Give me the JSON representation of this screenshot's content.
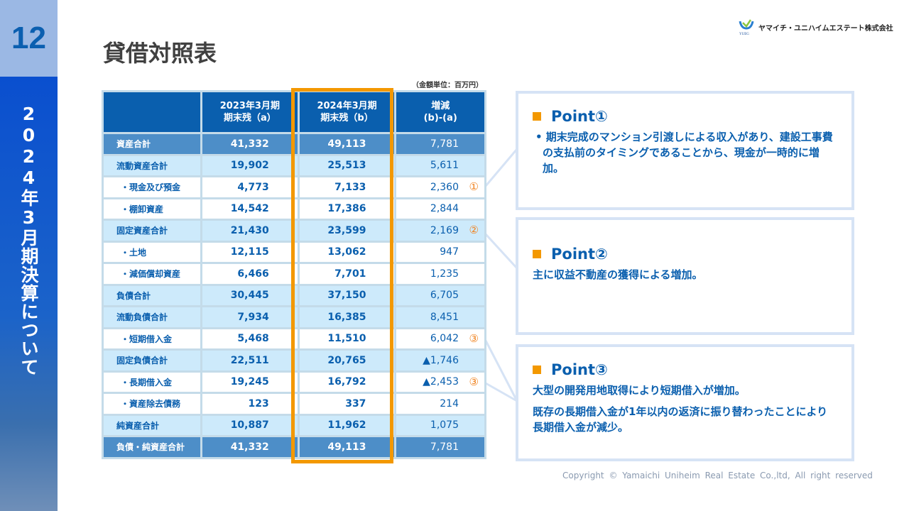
{
  "page_number": "12",
  "section_title": "2024年3月期決算について",
  "title": "貸借対照表",
  "company": "ヤマイチ・ユニハイムエステート株式会社",
  "logo_text": "YUEG",
  "unit_note": "（金額単位：百万円）",
  "headers": [
    "",
    "2023年3月期\n期末残（a）",
    "2024年3月期\n期末残（b）",
    "増減\n(b)-(a)"
  ],
  "rows": [
    {
      "type": "total",
      "label": "資産合計",
      "a": "41,332",
      "b": "49,113",
      "d": "7,781",
      "mark": ""
    },
    {
      "type": "sub",
      "label": "流動資産合計",
      "a": "19,902",
      "b": "25,513",
      "d": "5,611",
      "mark": ""
    },
    {
      "type": "item",
      "label": "・現金及び預金",
      "a": "4,773",
      "b": "7,133",
      "d": "2,360",
      "mark": "①"
    },
    {
      "type": "item",
      "label": "・棚卸資産",
      "a": "14,542",
      "b": "17,386",
      "d": "2,844",
      "mark": ""
    },
    {
      "type": "sub",
      "label": "固定資産合計",
      "a": "21,430",
      "b": "23,599",
      "d": "2,169",
      "mark": "②"
    },
    {
      "type": "item",
      "label": "・土地",
      "a": "12,115",
      "b": "13,062",
      "d": "947",
      "mark": ""
    },
    {
      "type": "item",
      "label": "・減価償却資産",
      "a": "6,466",
      "b": "7,701",
      "d": "1,235",
      "mark": ""
    },
    {
      "type": "sub",
      "label": "負債合計",
      "a": "30,445",
      "b": "37,150",
      "d": "6,705",
      "mark": ""
    },
    {
      "type": "sub",
      "label": "流動負債合計",
      "a": "7,934",
      "b": "16,385",
      "d": "8,451",
      "mark": ""
    },
    {
      "type": "item",
      "label": "・短期借入金",
      "a": "5,468",
      "b": "11,510",
      "d": "6,042",
      "mark": "③"
    },
    {
      "type": "sub",
      "label": "固定負債合計",
      "a": "22,511",
      "b": "20,765",
      "d": "▲1,746",
      "mark": ""
    },
    {
      "type": "item",
      "label": "・長期借入金",
      "a": "19,245",
      "b": "16,792",
      "d": "▲2,453",
      "mark": "③"
    },
    {
      "type": "item",
      "label": "・資産除去債務",
      "a": "123",
      "b": "337",
      "d": "214",
      "mark": ""
    },
    {
      "type": "sub",
      "label": "純資産合計",
      "a": "10,887",
      "b": "11,962",
      "d": "1,075",
      "mark": ""
    },
    {
      "type": "total",
      "label": "負債・純資産合計",
      "a": "41,332",
      "b": "49,113",
      "d": "7,781",
      "mark": ""
    }
  ],
  "points": [
    {
      "title": "Point①",
      "texts": [
        "• 期末完成のマンション引渡しによる収入があり、建設工事費の支払前のタイミングであることから、現金が一時的に増加。"
      ]
    },
    {
      "title": "Point②",
      "texts": [
        "主に収益不動産の獲得による増加。"
      ]
    },
    {
      "title": "Point③",
      "texts": [
        "大型の開発用地取得により短期借入が増加。",
        "既存の長期借入金が1年以内の返済に振り替わったことにより長期借入金が減少。"
      ]
    }
  ],
  "copyright": "Copyright © Yamaichi Uniheim Real Estate Co.,ltd, All right reserved",
  "colors": {
    "accent": "#f39800",
    "brand": "#0a5fae"
  }
}
